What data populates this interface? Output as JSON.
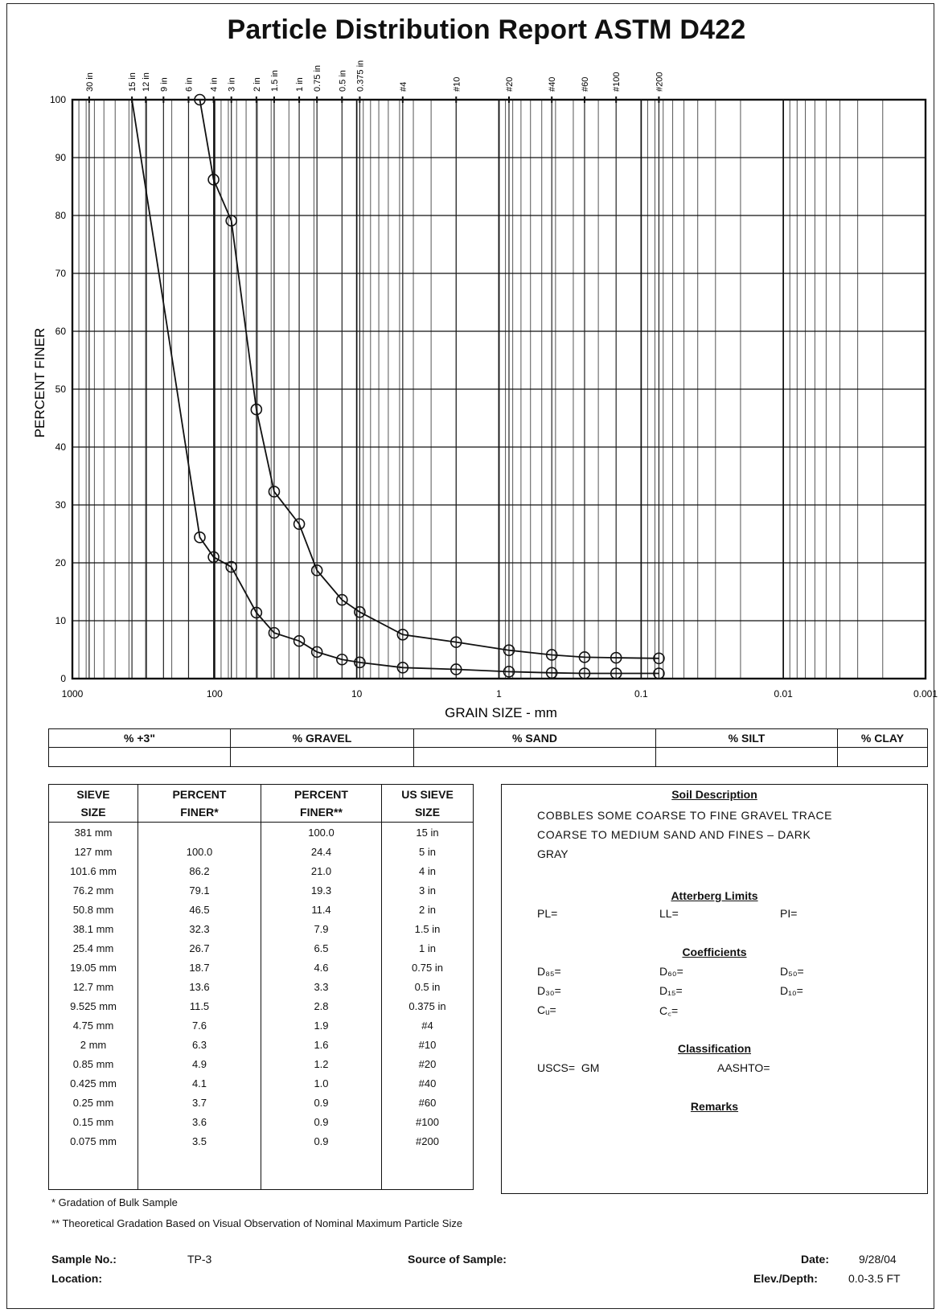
{
  "title": "Particle Distribution Report ASTM D422",
  "chart_data": {
    "type": "line",
    "x_scale": "log",
    "x_reversed": true,
    "xlabel": "GRAIN SIZE - mm",
    "ylabel": "PERCENT FINER",
    "xlim": [
      1000,
      0.001
    ],
    "ylim": [
      0,
      100
    ],
    "x_tick_labels": [
      "1000",
      "100",
      "10",
      "1",
      "0.1",
      "0.01",
      "0.001"
    ],
    "y_tick_labels": [
      "0",
      "10",
      "20",
      "30",
      "40",
      "50",
      "60",
      "70",
      "80",
      "90",
      "100"
    ],
    "top_sieve_labels": [
      {
        "label": "30 in",
        "size": 762
      },
      {
        "label": "15 in",
        "size": 381
      },
      {
        "label": "12 in",
        "size": 304.8
      },
      {
        "label": "9 in",
        "size": 228.6
      },
      {
        "label": "6 in",
        "size": 152.4
      },
      {
        "label": "4 in",
        "size": 101.6
      },
      {
        "label": "3 in",
        "size": 76.2
      },
      {
        "label": "2 in",
        "size": 50.8
      },
      {
        "label": "1.5 in",
        "size": 38.1
      },
      {
        "label": "1 in",
        "size": 25.4
      },
      {
        "label": "0.75 in",
        "size": 19.05
      },
      {
        "label": "0.5 in",
        "size": 12.7
      },
      {
        "label": "0.375 in",
        "size": 9.525
      },
      {
        "label": "#4",
        "size": 4.75
      },
      {
        "label": "#10",
        "size": 2
      },
      {
        "label": "#20",
        "size": 0.85
      },
      {
        "label": "#40",
        "size": 0.425
      },
      {
        "label": "#60",
        "size": 0.25
      },
      {
        "label": "#100",
        "size": 0.15
      },
      {
        "label": "#200",
        "size": 0.075
      }
    ],
    "series": [
      {
        "x": [
          127,
          101.6,
          76.2,
          50.8,
          38.1,
          25.4,
          19.05,
          12.7,
          9.525,
          4.75,
          2,
          0.85,
          0.425,
          0.25,
          0.15,
          0.075
        ],
        "y": [
          100.0,
          86.2,
          79.1,
          46.5,
          32.3,
          26.7,
          18.7,
          13.6,
          11.5,
          7.6,
          6.3,
          4.9,
          4.1,
          3.7,
          3.6,
          3.5
        ]
      },
      {
        "x": [
          381,
          127,
          101.6,
          76.2,
          50.8,
          38.1,
          25.4,
          19.05,
          12.7,
          9.525,
          4.75,
          2,
          0.85,
          0.425,
          0.25,
          0.15,
          0.075
        ],
        "y": [
          100.0,
          24.4,
          21.0,
          19.3,
          11.4,
          7.9,
          6.5,
          4.6,
          3.3,
          2.8,
          1.9,
          1.6,
          1.2,
          1.0,
          0.9,
          0.9,
          0.9
        ]
      }
    ]
  },
  "summary_strip": {
    "headers": [
      "% +3\"",
      "% GRAVEL",
      "% SAND",
      "% SILT",
      "% CLAY"
    ],
    "values": [
      "",
      "",
      "",
      "",
      ""
    ]
  },
  "sieve_table": {
    "headers": [
      "SIEVE\nSIZE",
      "PERCENT\nFINER*",
      "PERCENT\nFINER**",
      "US SIEVE\nSIZE"
    ],
    "rows": [
      [
        "381 mm",
        "",
        "100.0",
        "15 in"
      ],
      [
        "127 mm",
        "100.0",
        "24.4",
        "5 in"
      ],
      [
        "101.6 mm",
        "86.2",
        "21.0",
        "4 in"
      ],
      [
        "76.2 mm",
        "79.1",
        "19.3",
        "3 in"
      ],
      [
        "50.8 mm",
        "46.5",
        "11.4",
        "2 in"
      ],
      [
        "38.1 mm",
        "32.3",
        "7.9",
        "1.5 in"
      ],
      [
        "25.4 mm",
        "26.7",
        "6.5",
        "1 in"
      ],
      [
        "19.05 mm",
        "18.7",
        "4.6",
        "0.75 in"
      ],
      [
        "12.7 mm",
        "13.6",
        "3.3",
        "0.5 in"
      ],
      [
        "9.525 mm",
        "11.5",
        "2.8",
        "0.375 in"
      ],
      [
        "4.75 mm",
        "7.6",
        "1.9",
        "#4"
      ],
      [
        "2 mm",
        "6.3",
        "1.6",
        "#10"
      ],
      [
        "0.85 mm",
        "4.9",
        "1.2",
        "#20"
      ],
      [
        "0.425 mm",
        "4.1",
        "1.0",
        "#40"
      ],
      [
        "0.25 mm",
        "3.7",
        "0.9",
        "#60"
      ],
      [
        "0.15 mm",
        "3.6",
        "0.9",
        "#100"
      ],
      [
        "0.075 mm",
        "3.5",
        "0.9",
        "#200"
      ],
      [
        "",
        "",
        "",
        ""
      ],
      [
        "",
        "",
        "",
        ""
      ]
    ]
  },
  "soil": {
    "description_heading": "Soil Description",
    "description_lines": [
      "COBBLES SOME COARSE TO FINE GRAVEL TRACE",
      "COARSE TO MEDIUM SAND AND FINES – DARK",
      "GRAY"
    ],
    "atterberg_heading": "Atterberg Limits",
    "pl": "PL=",
    "ll": "LL=",
    "pi": "PI=",
    "coefficients_heading": "Coefficients",
    "d85": "D₈₅=",
    "d60": "D₆₀=",
    "d50": "D₅₀=",
    "d30": "D₃₀=",
    "d15": "D₁₅=",
    "d10": "D₁₀=",
    "cu": "Cᵤ=",
    "cc": "C꜀=",
    "classification_heading": "Classification",
    "uscs": "USCS=  GM",
    "aashto": "AASHTO=",
    "remarks_heading": "Remarks"
  },
  "notes": {
    "note1": "*  Gradation of Bulk Sample",
    "note2": "**  Theoretical Gradation Based on Visual Observation of Nominal Maximum Particle Size"
  },
  "footer": {
    "sample_no_label": "Sample No.:",
    "sample_no": "TP-3",
    "location_label": "Location:",
    "source_label": "Source of Sample:",
    "date_label": "Date:",
    "date": "9/28/04",
    "elev_label": "Elev./Depth:",
    "elev": "0.0-3.5 FT"
  }
}
